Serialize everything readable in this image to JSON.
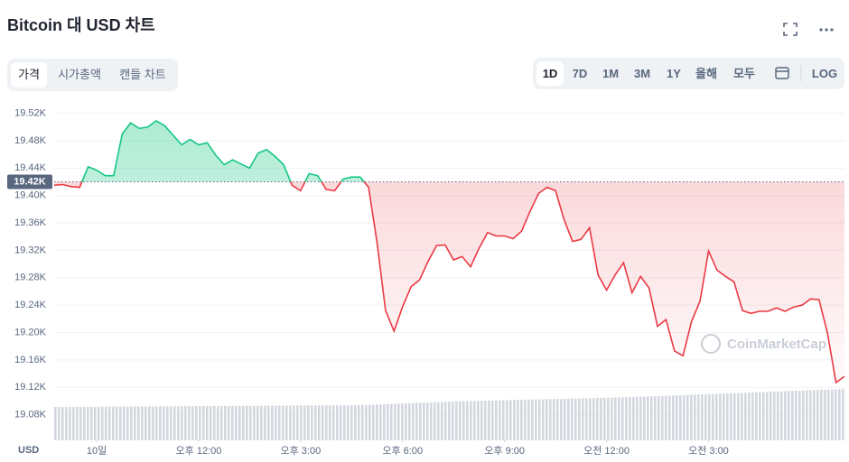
{
  "ui": {
    "title": "Bitcoin 대 USD 차트",
    "tabs": [
      "가격",
      "시가총액",
      "캔들 차트"
    ],
    "ranges": [
      "1D",
      "7D",
      "1M",
      "3M",
      "1Y",
      "올해",
      "모두"
    ],
    "log_label": "LOG",
    "unit": "USD",
    "watermark": "CoinMarketCap"
  },
  "chart_data": {
    "type": "line",
    "up_color": "#16c784",
    "down_color": "#ea3943",
    "reference": {
      "value": 19.42,
      "label": "19.42K"
    },
    "xlim": [
      7.75,
      31
    ],
    "ylim": [
      19.04,
      19.53
    ],
    "xticks": [
      {
        "value": 9,
        "label": "10일"
      },
      {
        "value": 12,
        "label": "오후 12:00"
      },
      {
        "value": 15,
        "label": "오후 3:00"
      },
      {
        "value": 18,
        "label": "오후 6:00"
      },
      {
        "value": 21,
        "label": "오후 9:00"
      },
      {
        "value": 24,
        "label": "오전 12:00"
      },
      {
        "value": 27,
        "label": "오전 3:00"
      }
    ],
    "yticks": [
      {
        "value": 19.08,
        "label": "19.08K"
      },
      {
        "value": 19.12,
        "label": "19.12K"
      },
      {
        "value": 19.16,
        "label": "19.16K"
      },
      {
        "value": 19.2,
        "label": "19.20K"
      },
      {
        "value": 19.24,
        "label": "19.24K"
      },
      {
        "value": 19.28,
        "label": "19.28K"
      },
      {
        "value": 19.32,
        "label": "19.32K"
      },
      {
        "value": 19.36,
        "label": "19.36K"
      },
      {
        "value": 19.4,
        "label": "19.40K"
      },
      {
        "value": 19.44,
        "label": "19.44K"
      },
      {
        "value": 19.48,
        "label": "19.48K"
      },
      {
        "value": 19.52,
        "label": "19.52K"
      }
    ],
    "grid": true,
    "x": [
      7.75,
      8,
      8.25,
      8.5,
      8.75,
      9,
      9.25,
      9.5,
      9.75,
      10,
      10.25,
      10.5,
      10.75,
      11,
      11.25,
      11.5,
      11.75,
      12,
      12.25,
      12.5,
      12.75,
      13,
      13.25,
      13.5,
      13.75,
      14,
      14.25,
      14.5,
      14.75,
      15,
      15.25,
      15.5,
      15.75,
      16,
      16.25,
      16.5,
      16.75,
      17,
      17.25,
      17.5,
      17.75,
      18,
      18.25,
      18.5,
      18.75,
      19,
      19.25,
      19.5,
      19.75,
      20,
      20.25,
      20.5,
      20.75,
      21,
      21.25,
      21.5,
      21.75,
      22,
      22.25,
      22.5,
      22.75,
      23,
      23.25,
      23.5,
      23.75,
      24,
      24.25,
      24.5,
      24.75,
      25,
      25.25,
      25.5,
      25.75,
      26,
      26.25,
      26.5,
      26.75,
      27,
      27.25,
      27.5,
      27.75,
      28,
      28.25,
      28.5,
      28.75,
      29,
      29.25,
      29.5,
      29.75,
      30,
      30.25,
      30.5,
      30.75,
      31
    ],
    "values": [
      19.415,
      19.416,
      19.413,
      19.412,
      19.442,
      19.437,
      19.429,
      19.429,
      19.49,
      19.506,
      19.498,
      19.5,
      19.509,
      19.502,
      19.488,
      19.474,
      19.482,
      19.474,
      19.477,
      19.459,
      19.445,
      19.452,
      19.446,
      19.44,
      19.462,
      19.467,
      19.457,
      19.445,
      19.415,
      19.407,
      19.432,
      19.429,
      19.409,
      19.407,
      19.424,
      19.427,
      19.427,
      19.412,
      19.331,
      19.232,
      19.202,
      19.238,
      19.267,
      19.277,
      19.304,
      19.327,
      19.328,
      19.306,
      19.311,
      19.296,
      19.323,
      19.346,
      19.341,
      19.341,
      19.337,
      19.348,
      19.377,
      19.403,
      19.412,
      19.407,
      19.365,
      19.333,
      19.336,
      19.353,
      19.284,
      19.262,
      19.284,
      19.302,
      19.258,
      19.282,
      19.265,
      19.209,
      19.219,
      19.173,
      19.166,
      19.216,
      19.246,
      19.319,
      19.291,
      19.282,
      19.274,
      19.232,
      19.228,
      19.231,
      19.231,
      19.236,
      19.231,
      19.237,
      19.24,
      19.249,
      19.248,
      19.199,
      19.127,
      19.136
    ]
  }
}
